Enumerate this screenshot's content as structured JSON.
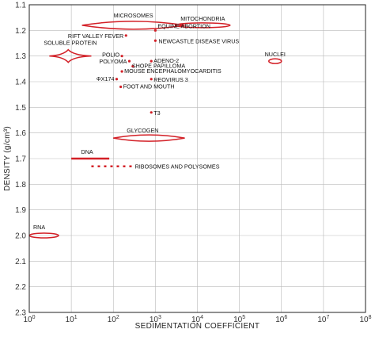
{
  "chart_data": {
    "type": "scatter",
    "title": "",
    "xlabel": "SEDIMENTATION COEFFICIENT",
    "ylabel": "DENSITY (g/cm³)",
    "x_scale": "log",
    "xlim": [
      1,
      100000000
    ],
    "ylim": [
      1.1,
      2.3
    ],
    "y_inverted": true,
    "grid": true,
    "x_ticks": [
      {
        "value": 1,
        "base": "10",
        "exp": "0"
      },
      {
        "value": 10,
        "base": "10",
        "exp": "1"
      },
      {
        "value": 100,
        "base": "10",
        "exp": "2"
      },
      {
        "value": 1000,
        "base": "10",
        "exp": "3"
      },
      {
        "value": 10000,
        "base": "10",
        "exp": "4"
      },
      {
        "value": 100000,
        "base": "10",
        "exp": "5"
      },
      {
        "value": 1000000,
        "base": "10",
        "exp": "6"
      },
      {
        "value": 10000000,
        "base": "10",
        "exp": "7"
      },
      {
        "value": 100000000,
        "base": "10",
        "exp": "8"
      }
    ],
    "y_ticks": [
      "1.1",
      "1.2",
      "1.3",
      "1.4",
      "1.5",
      "1.6",
      "1.7",
      "1.8",
      "1.9",
      "2.0",
      "2.1",
      "2.2",
      "2.3"
    ],
    "points": [
      {
        "label": "RIFT VALLEY FEVER",
        "x": 200,
        "y": 1.22
      },
      {
        "label": "EQUINE ABORTION",
        "x": 1000,
        "y": 1.2
      },
      {
        "label": "NEWCASTLE DISEASE VIRUS",
        "x": 1000,
        "y": 1.24
      },
      {
        "label": "POLIO",
        "x": 160,
        "y": 1.3
      },
      {
        "label": "ADENO-2",
        "x": 800,
        "y": 1.32
      },
      {
        "label": "POLYOMA",
        "x": 240,
        "y": 1.32
      },
      {
        "label": "SHOPE PAPILLOMA",
        "x": 290,
        "y": 1.34
      },
      {
        "label": "MOUSE ENCEPHALOMYOCARDITIS",
        "x": 160,
        "y": 1.36
      },
      {
        "label": "ΦX174",
        "x": 120,
        "y": 1.39
      },
      {
        "label": "REOVIRUS 3",
        "x": 800,
        "y": 1.39
      },
      {
        "label": "FOOT AND MOUTH",
        "x": 150,
        "y": 1.42
      },
      {
        "label": "T3",
        "x": 800,
        "y": 1.52
      }
    ],
    "regions": [
      {
        "label": "MICROSOMES",
        "x_range": [
          18,
          5000
        ],
        "y": 1.18,
        "shape": "lens"
      },
      {
        "label": "MITOCHONDRIA",
        "x_range": [
          3000,
          60000
        ],
        "y": 1.18,
        "shape": "ellipse"
      },
      {
        "label": "SOLUBLE PROTEIN",
        "x_range": [
          3,
          30
        ],
        "y": 1.3,
        "shape": "diamond"
      },
      {
        "label": "NUCLEI",
        "x_range": [
          500000,
          1000000
        ],
        "y": 1.32,
        "shape": "ellipse"
      },
      {
        "label": "GLYCOGEN",
        "x_range": [
          100,
          5000
        ],
        "y": 1.62,
        "shape": "lens"
      },
      {
        "label": "DNA",
        "x_range": [
          10,
          80
        ],
        "y": 1.7,
        "shape": "bar"
      },
      {
        "label": "RIBOSOMES AND POLYSOMES",
        "x_range": [
          30,
          300
        ],
        "y": 1.73,
        "shape": "dashed"
      },
      {
        "label": "RNA",
        "x_range": [
          1,
          5
        ],
        "y": 2.0,
        "shape": "ellipse"
      }
    ]
  }
}
